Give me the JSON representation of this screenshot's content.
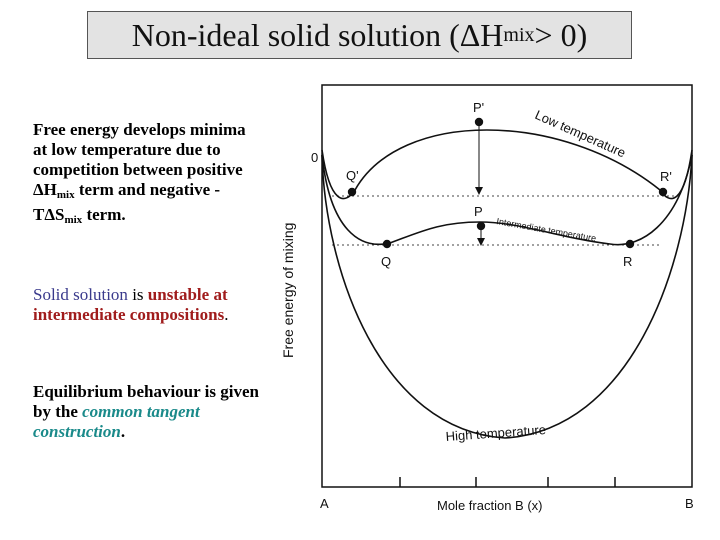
{
  "title": {
    "main": "Non-ideal solid solution (ΔH",
    "sub": "mix",
    "tail": " > 0)"
  },
  "para1": {
    "line1": "Free energy develops minima at low temperature due to competition between positive ΔH",
    "sub1": "mix",
    "mid": " term and negative -TΔS",
    "sub2": "mix",
    "end": " term."
  },
  "para2": {
    "w1": "Solid solution",
    "w2": " is ",
    "w3": "unstable at intermediate compositions",
    "w4": "."
  },
  "para3": {
    "w1": "Equilibrium behaviour is given by the ",
    "w2": "common tangent construction",
    "w3": "."
  },
  "diagram": {
    "ylabel": "Free energy of mixing",
    "xlabel": "Mole fraction B (x)",
    "zero_label": "0",
    "left_end": "A",
    "right_end": "B",
    "curve_low": "Low temperature",
    "curve_mid": "Intermediate temperature",
    "curve_high": "High temperature",
    "point_p_prime": "P'",
    "point_q_prime": "Q'",
    "point_r_prime": "R'",
    "point_p": "P",
    "point_q": "Q",
    "point_r": "R"
  }
}
